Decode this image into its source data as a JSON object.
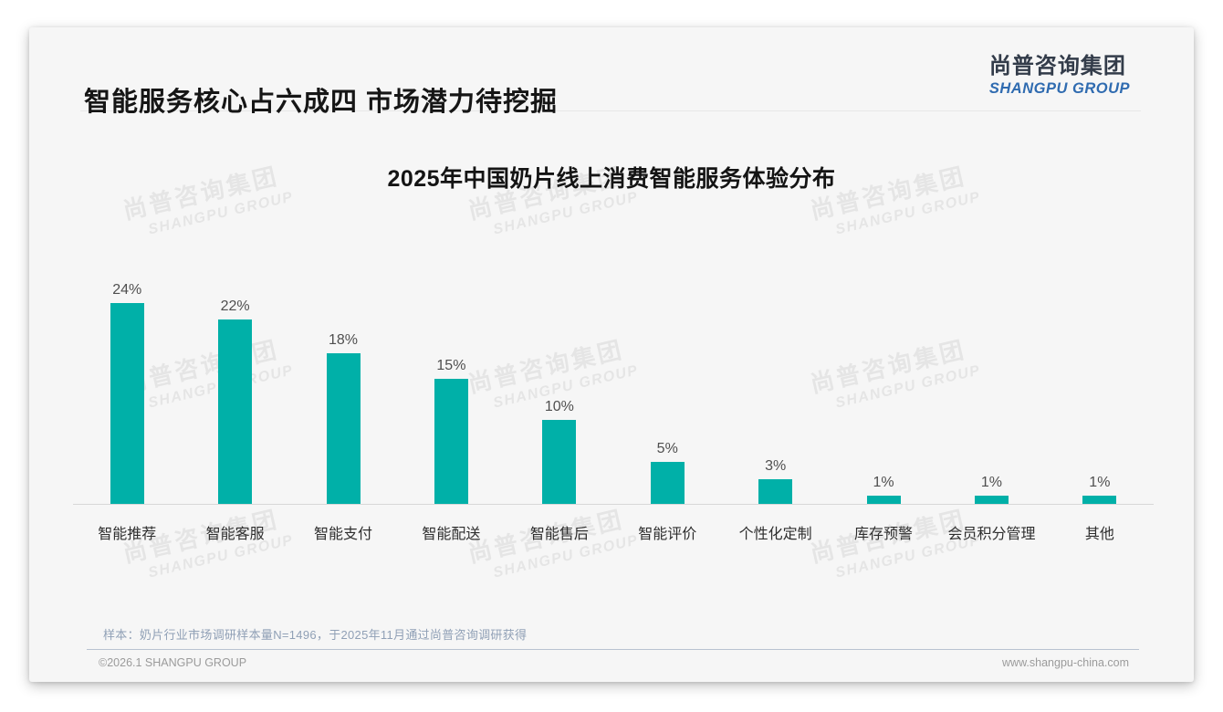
{
  "header": {
    "title": "智能服务核心占六成四 市场潜力待挖掘",
    "logo_cn": "尚普咨询集团",
    "logo_en": "SHANGPU GROUP"
  },
  "watermark": {
    "cn": "尚普咨询集团",
    "en": "SHANGPU GROUP"
  },
  "chart_data": {
    "type": "bar",
    "title": "2025年中国奶片线上消费智能服务体验分布",
    "categories": [
      "智能推荐",
      "智能客服",
      "智能支付",
      "智能配送",
      "智能售后",
      "智能评价",
      "个性化定制",
      "库存预警",
      "会员积分管理",
      "其他"
    ],
    "values": [
      24,
      22,
      18,
      15,
      10,
      5,
      3,
      1,
      1,
      1
    ],
    "value_labels": [
      "24%",
      "22%",
      "18%",
      "15%",
      "10%",
      "5%",
      "3%",
      "1%",
      "1%",
      "1%"
    ],
    "unit": "%",
    "xlabel": "",
    "ylabel": "",
    "ylim": [
      0,
      25
    ],
    "grid": false,
    "legend_position": "none",
    "bar_color": "#00B0A8",
    "axis_line_color": "#d8d8d8"
  },
  "note": "样本：奶片行业市场调研样本量N=1496，于2025年11月通过尚普咨询调研获得",
  "footer": {
    "copyright": "©2026.1 SHANGPU GROUP",
    "website": "www.shangpu-china.com"
  }
}
